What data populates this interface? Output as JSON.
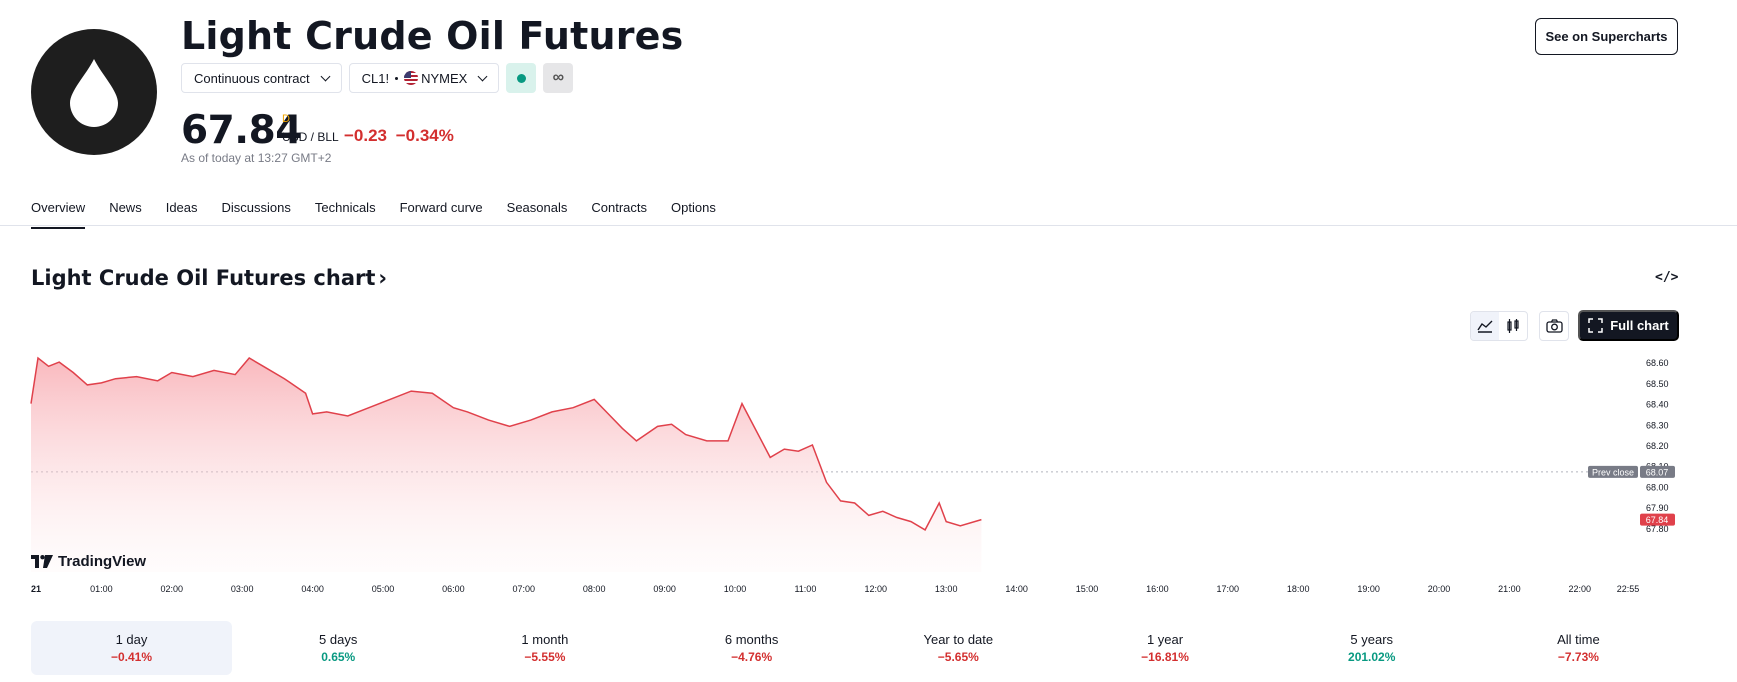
{
  "header": {
    "title": "Light Crude Oil Futures",
    "contract_selector": "Continuous contract",
    "ticker": "CL1!",
    "exchange": "NYMEX",
    "supercharts_label": "See on Supercharts",
    "infinity_symbol": "∞"
  },
  "quote": {
    "price": "67.84",
    "flag": "D",
    "unit": "USD / BLL",
    "change": "−0.23",
    "change_pct": "−0.34%",
    "as_of": "As of today at 13:27 GMT+2"
  },
  "tabs": [
    {
      "label": "Overview",
      "active": true
    },
    {
      "label": "News"
    },
    {
      "label": "Ideas"
    },
    {
      "label": "Discussions"
    },
    {
      "label": "Technicals"
    },
    {
      "label": "Forward curve"
    },
    {
      "label": "Seasonals"
    },
    {
      "label": "Contracts"
    },
    {
      "label": "Options"
    }
  ],
  "chart_section": {
    "title": "Light Crude Oil Futures chart",
    "title_chevron": "›",
    "embed_symbol": "</>",
    "full_chart_label": "Full chart",
    "brand": "TradingView"
  },
  "chart_data": {
    "type": "area",
    "x_ticks": [
      "21",
      "01:00",
      "02:00",
      "03:00",
      "04:00",
      "05:00",
      "06:00",
      "07:00",
      "08:00",
      "09:00",
      "10:00",
      "11:00",
      "12:00",
      "13:00",
      "14:00",
      "15:00",
      "16:00",
      "17:00",
      "18:00",
      "19:00",
      "20:00",
      "21:00",
      "22:00",
      "22:55"
    ],
    "y_ticks": [
      "68.60",
      "68.50",
      "68.40",
      "68.30",
      "68.20",
      "68.10",
      "68.00",
      "67.90",
      "67.80"
    ],
    "ylim": [
      67.78,
      68.62
    ],
    "prev_close": 68.07,
    "prev_close_label": "Prev close",
    "prev_close_value": "68.07",
    "last_price_label": "67.84",
    "grid": false,
    "series": [
      {
        "x": [
          0,
          0.1,
          0.25,
          0.4,
          0.6,
          0.8,
          1.0,
          1.2,
          1.5,
          1.8,
          2.0,
          2.3,
          2.6,
          2.9,
          3.1,
          3.3,
          3.6,
          3.9,
          4.0,
          4.2,
          4.5,
          4.8,
          5.1,
          5.4,
          5.7,
          6.0,
          6.2,
          6.5,
          6.8,
          7.1,
          7.4,
          7.7,
          8.0,
          8.2,
          8.4,
          8.6,
          8.9,
          9.1,
          9.3,
          9.6,
          9.9,
          10.1,
          10.3,
          10.5,
          10.7,
          10.9,
          11.1,
          11.3,
          11.5,
          11.7,
          11.9,
          12.1,
          12.3,
          12.5,
          12.7,
          12.9,
          13.0,
          13.2,
          13.5
        ],
        "values": [
          68.4,
          68.62,
          68.58,
          68.6,
          68.55,
          68.49,
          68.5,
          68.52,
          68.53,
          68.51,
          68.55,
          68.53,
          68.56,
          68.54,
          68.62,
          68.58,
          68.52,
          68.45,
          68.35,
          68.36,
          68.34,
          68.38,
          68.42,
          68.46,
          68.45,
          68.38,
          68.36,
          68.32,
          68.29,
          68.32,
          68.36,
          68.38,
          68.42,
          68.35,
          68.28,
          68.22,
          68.29,
          68.3,
          68.25,
          68.22,
          68.22,
          68.4,
          68.27,
          68.14,
          68.18,
          68.17,
          68.2,
          68.02,
          67.93,
          67.92,
          67.86,
          67.88,
          67.85,
          67.83,
          67.79,
          67.92,
          67.83,
          67.81,
          67.84
        ]
      }
    ]
  },
  "periods": [
    {
      "label": "1 day",
      "value": "−0.41%",
      "sign": "neg",
      "active": true
    },
    {
      "label": "5 days",
      "value": "0.65%",
      "sign": "pos"
    },
    {
      "label": "1 month",
      "value": "−5.55%",
      "sign": "neg"
    },
    {
      "label": "6 months",
      "value": "−4.76%",
      "sign": "neg"
    },
    {
      "label": "Year to date",
      "value": "−5.65%",
      "sign": "neg"
    },
    {
      "label": "1 year",
      "value": "−16.81%",
      "sign": "neg"
    },
    {
      "label": "5 years",
      "value": "201.02%",
      "sign": "pos"
    },
    {
      "label": "All time",
      "value": "−7.73%",
      "sign": "neg"
    }
  ],
  "colors": {
    "accent_red": "#d32f2f",
    "accent_green": "#089981",
    "line": "#e0414b",
    "dark": "#131722"
  }
}
